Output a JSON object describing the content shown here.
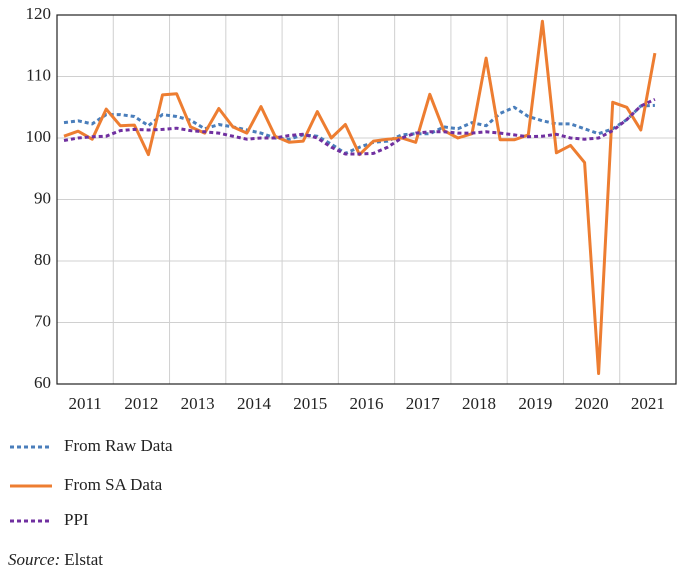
{
  "chart_data": {
    "type": "line",
    "categories": [
      "2011",
      null,
      null,
      null,
      "2012",
      null,
      null,
      null,
      "2013",
      null,
      null,
      null,
      "2014",
      null,
      null,
      null,
      "2015",
      null,
      null,
      null,
      "2016",
      null,
      null,
      null,
      "2017",
      null,
      null,
      null,
      "2018",
      null,
      null,
      null,
      "2019",
      null,
      null,
      null,
      "2020",
      null,
      null,
      null,
      "2021",
      null,
      null
    ],
    "series": [
      {
        "name": "From Raw Data",
        "color": "#4a7ebb",
        "dash": "4 3",
        "values": [
          102.5,
          102.8,
          102.3,
          103.8,
          103.8,
          103.5,
          102.0,
          103.8,
          103.5,
          102.9,
          101.5,
          102.2,
          101.8,
          101.3,
          100.8,
          100.0,
          99.8,
          100.5,
          100.3,
          99.0,
          97.5,
          98.5,
          99.3,
          99.5,
          100.5,
          100.7,
          100.7,
          101.8,
          101.5,
          102.5,
          102.0,
          104.0,
          105.0,
          103.5,
          102.8,
          102.3,
          102.3,
          101.5,
          100.7,
          101.5,
          103.0,
          105.2,
          105.3
        ]
      },
      {
        "name": "From SA Data",
        "color": "#ed7d31",
        "values": [
          100.3,
          101.1,
          99.8,
          104.7,
          102.0,
          102.1,
          97.3,
          107.0,
          107.2,
          101.8,
          100.8,
          104.8,
          101.8,
          100.8,
          105.1,
          100.3,
          99.3,
          99.5,
          104.3,
          100.0,
          102.2,
          97.3,
          99.5,
          99.8,
          100.0,
          99.3,
          107.1,
          101.2,
          100.0,
          100.7,
          113.0,
          99.7,
          99.7,
          100.5,
          119.0,
          97.6,
          98.8,
          96.0,
          61.7,
          105.8,
          105.0,
          101.3,
          113.8
        ]
      },
      {
        "name": "PPI",
        "color": "#7030a0",
        "dash": "4 3",
        "values": [
          99.6,
          100.0,
          100.2,
          100.3,
          101.2,
          101.4,
          101.3,
          101.4,
          101.6,
          101.2,
          101.0,
          100.8,
          100.3,
          99.8,
          100.0,
          100.0,
          100.4,
          100.6,
          100.0,
          98.5,
          97.4,
          97.4,
          97.5,
          98.5,
          100.0,
          100.8,
          101.0,
          101.0,
          100.8,
          100.8,
          101.0,
          100.8,
          100.5,
          100.2,
          100.3,
          100.6,
          100.0,
          99.8,
          100.0,
          101.2,
          103.0,
          105.2,
          106.3
        ]
      }
    ],
    "ylim": [
      60,
      120
    ],
    "yticks": [
      60,
      70,
      80,
      90,
      100,
      110,
      120
    ],
    "grid": true,
    "source": {
      "label": "Source:",
      "text": "Elstat"
    }
  }
}
